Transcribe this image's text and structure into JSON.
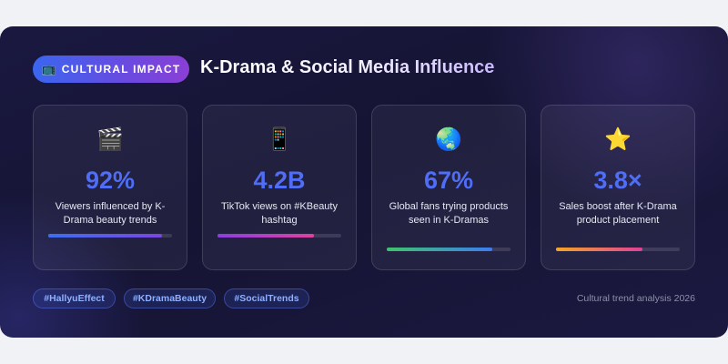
{
  "header": {
    "badge_icon": "📺",
    "badge_label": "CULTURAL IMPACT",
    "title": "K-Drama & Social Media Influence"
  },
  "stats": [
    {
      "icon": "🎬",
      "icon_name": "clapperboard-icon",
      "value": "92%",
      "label": "Viewers influenced by K-Drama beauty trends",
      "progress": 0.92,
      "gradient": [
        "#3b6ff0",
        "#7a46e0"
      ]
    },
    {
      "icon": "📱",
      "icon_name": "mobile-phone-icon",
      "value": "4.2B",
      "label": "TikTok views on #KBeauty hashtag",
      "progress": 0.78,
      "gradient": [
        "#8a3fe0",
        "#e040a0"
      ]
    },
    {
      "icon": "🌏",
      "icon_name": "globe-icon",
      "value": "67%",
      "label": "Global fans trying products seen in K-Dramas",
      "progress": 0.85,
      "gradient": [
        "#3ec46a",
        "#3d7cf0"
      ]
    },
    {
      "icon": "⭐",
      "icon_name": "star-icon",
      "value": "3.8×",
      "label": "Sales boost after K-Drama product placement",
      "progress": 0.7,
      "gradient": [
        "#f5a623",
        "#e0409a"
      ]
    }
  ],
  "tags": [
    "#HallyuEffect",
    "#KDramaBeauty",
    "#SocialTrends"
  ],
  "footer": {
    "text": "Cultural trend analysis 2026"
  },
  "colors": {
    "accent": "#4f6df5",
    "tag_text": "#8fb0ff",
    "background": "#151433"
  }
}
